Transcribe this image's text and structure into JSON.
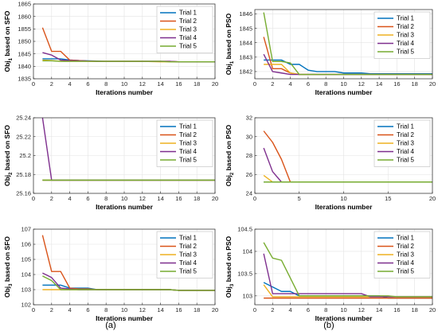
{
  "figure": {
    "left_label": "(a)",
    "right_label": "(b)"
  },
  "colors": [
    "#0072BD",
    "#D95319",
    "#EDB120",
    "#7E2F8E",
    "#77AC30"
  ],
  "chart_data": [
    {
      "type": "line",
      "id": "a1",
      "xlabel": "Iterations number",
      "ylabel_base": "Obj",
      "ylabel_sub": "1",
      "ylabel_rest": " based on SFO",
      "xlim": [
        0,
        20
      ],
      "ylim": [
        1835,
        1865
      ],
      "xticks": [
        0,
        2,
        4,
        6,
        8,
        10,
        12,
        14,
        16,
        18,
        20
      ],
      "yticks": [
        1835,
        1840,
        1845,
        1850,
        1855,
        1860,
        1865
      ],
      "grid": true,
      "legend": "top-right",
      "x": [
        1,
        2,
        3,
        4,
        5,
        6,
        7,
        8,
        9,
        10,
        11,
        12,
        13,
        14,
        15,
        16,
        17,
        18,
        19,
        20
      ],
      "series": [
        {
          "name": "Trial 1",
          "values": [
            1843,
            1843,
            1843,
            1842.5,
            1842.3,
            1842.2,
            1842.1,
            1842,
            1842,
            1842,
            1842,
            1842,
            1842,
            1842,
            1841.9,
            1841.8,
            1841.8,
            1841.8,
            1841.8,
            1841.8
          ]
        },
        {
          "name": "Trial 2",
          "values": [
            1855.5,
            1846,
            1846,
            1842.5,
            1842.3,
            1842.1,
            1842,
            1842,
            1842,
            1842,
            1842,
            1842,
            1842,
            1842,
            1842,
            1841.8,
            1841.8,
            1841.8,
            1841.8,
            1841.8
          ]
        },
        {
          "name": "Trial 3",
          "values": [
            1842.5,
            1842.3,
            1842,
            1842,
            1842,
            1842,
            1842,
            1842,
            1842,
            1842,
            1842,
            1842,
            1841.9,
            1841.8,
            1841.8,
            1841.8,
            1841.8,
            1841.8,
            1841.8,
            1841.8
          ]
        },
        {
          "name": "Trial 4",
          "values": [
            1845.5,
            1844.5,
            1842.5,
            1842.3,
            1842.2,
            1842.1,
            1842,
            1842,
            1842,
            1842,
            1842,
            1842,
            1842,
            1842,
            1842,
            1841.8,
            1841.8,
            1841.8,
            1841.8,
            1841.8
          ]
        },
        {
          "name": "Trial 5",
          "values": [
            1842.2,
            1842.2,
            1842,
            1842,
            1842,
            1842,
            1842,
            1842,
            1842,
            1842,
            1842,
            1842,
            1842,
            1842,
            1841.8,
            1841.8,
            1841.8,
            1841.8,
            1841.8,
            1841.8
          ]
        }
      ]
    },
    {
      "type": "line",
      "id": "b1",
      "xlabel": "Iterations number",
      "ylabel_base": "Obj",
      "ylabel_sub": "1",
      "ylabel_rest": " based on PSO",
      "xlim": [
        0,
        20
      ],
      "ylim": [
        1841.5,
        1846.3
      ],
      "xticks": [
        0,
        2,
        4,
        6,
        8,
        10,
        12,
        14,
        16,
        18,
        20
      ],
      "yticks": [
        1842,
        1843,
        1844,
        1845,
        1846
      ],
      "grid": true,
      "legend": "top-right",
      "x": [
        1,
        2,
        3,
        4,
        5,
        6,
        7,
        8,
        9,
        10,
        11,
        12,
        13,
        14,
        15,
        16,
        17,
        18,
        19,
        20
      ],
      "series": [
        {
          "name": "Trial 1",
          "values": [
            1842.8,
            1842.8,
            1842.8,
            1842.5,
            1842.5,
            1842.1,
            1842,
            1842,
            1842,
            1841.9,
            1841.9,
            1841.9,
            1841.85,
            1841.85,
            1841.85,
            1841.85,
            1841.85,
            1841.85,
            1841.85,
            1841.85
          ]
        },
        {
          "name": "Trial 2",
          "values": [
            1844.4,
            1842.2,
            1842.2,
            1841.9,
            1841.8,
            1841.8,
            1841.8,
            1841.8,
            1841.8,
            1841.8,
            1841.8,
            1841.8,
            1841.8,
            1841.8,
            1841.8,
            1841.8,
            1841.8,
            1841.8,
            1841.8,
            1841.8
          ]
        },
        {
          "name": "Trial 3",
          "values": [
            1842.5,
            1842.5,
            1842.5,
            1841.9,
            1841.8,
            1841.8,
            1841.8,
            1841.8,
            1841.8,
            1841.8,
            1841.8,
            1841.8,
            1841.8,
            1841.8,
            1841.8,
            1841.8,
            1841.8,
            1841.8,
            1841.8,
            1841.8
          ]
        },
        {
          "name": "Trial 4",
          "values": [
            1843.2,
            1842,
            1841.9,
            1841.8,
            1841.8,
            1841.8,
            1841.8,
            1841.8,
            1841.8,
            1841.8,
            1841.8,
            1841.8,
            1841.8,
            1841.8,
            1841.8,
            1841.8,
            1841.8,
            1841.8,
            1841.8,
            1841.8
          ]
        },
        {
          "name": "Trial 5",
          "values": [
            1846.1,
            1842.7,
            1842.7,
            1842.6,
            1841.8,
            1841.8,
            1841.8,
            1841.8,
            1841.8,
            1841.8,
            1841.8,
            1841.8,
            1841.8,
            1841.8,
            1841.8,
            1841.8,
            1841.8,
            1841.8,
            1841.8,
            1841.8
          ]
        }
      ]
    },
    {
      "type": "line",
      "id": "a2",
      "xlabel": "Iterations number",
      "ylabel_base": "Obj",
      "ylabel_sub": "2",
      "ylabel_rest": " based on SFO",
      "xlim": [
        0,
        20
      ],
      "ylim": [
        25.16,
        25.24
      ],
      "xticks": [
        0,
        2,
        4,
        6,
        8,
        10,
        12,
        14,
        16,
        18,
        20
      ],
      "yticks": [
        25.16,
        25.18,
        25.2,
        25.22,
        25.24
      ],
      "grid": true,
      "legend": "top-right",
      "x": [
        1,
        2,
        3,
        4,
        5,
        6,
        7,
        8,
        9,
        10,
        11,
        12,
        13,
        14,
        15,
        16,
        17,
        18,
        19,
        20
      ],
      "series": [
        {
          "name": "Trial 1",
          "values": [
            25.174,
            25.174,
            25.174,
            25.174,
            25.174,
            25.174,
            25.174,
            25.174,
            25.174,
            25.174,
            25.174,
            25.174,
            25.174,
            25.174,
            25.174,
            25.174,
            25.174,
            25.174,
            25.174,
            25.174
          ]
        },
        {
          "name": "Trial 2",
          "values": [
            25.174,
            25.174,
            25.174,
            25.174,
            25.174,
            25.174,
            25.174,
            25.174,
            25.174,
            25.174,
            25.174,
            25.174,
            25.174,
            25.174,
            25.174,
            25.174,
            25.174,
            25.174,
            25.174,
            25.174
          ]
        },
        {
          "name": "Trial 3",
          "values": [
            25.174,
            25.174,
            25.174,
            25.174,
            25.174,
            25.174,
            25.174,
            25.174,
            25.174,
            25.174,
            25.174,
            25.174,
            25.174,
            25.174,
            25.174,
            25.174,
            25.174,
            25.174,
            25.174,
            25.174
          ]
        },
        {
          "name": "Trial 4",
          "values": [
            25.24,
            25.174,
            25.174,
            25.174,
            25.174,
            25.174,
            25.174,
            25.174,
            25.174,
            25.174,
            25.174,
            25.174,
            25.174,
            25.174,
            25.174,
            25.174,
            25.174,
            25.174,
            25.174,
            25.174
          ]
        },
        {
          "name": "Trial 5",
          "values": [
            25.174,
            25.174,
            25.174,
            25.174,
            25.174,
            25.174,
            25.174,
            25.174,
            25.174,
            25.174,
            25.174,
            25.174,
            25.174,
            25.174,
            25.174,
            25.174,
            25.174,
            25.174,
            25.174,
            25.174
          ]
        }
      ]
    },
    {
      "type": "line",
      "id": "b2",
      "xlabel": "Iterations number",
      "ylabel_base": "Obj",
      "ylabel_sub": "2",
      "ylabel_rest": " based on PSO",
      "xlim": [
        0,
        20
      ],
      "ylim": [
        24,
        32
      ],
      "xticks": [
        0,
        5,
        10,
        15,
        20
      ],
      "yticks": [
        24,
        26,
        28,
        30,
        32
      ],
      "grid": true,
      "legend": "top-right",
      "x": [
        1,
        2,
        3,
        4,
        5,
        6,
        7,
        8,
        9,
        10,
        11,
        12,
        13,
        14,
        15,
        16,
        17,
        18,
        19,
        20
      ],
      "series": [
        {
          "name": "Trial 1",
          "values": [
            25.2,
            25.2,
            25.2,
            25.2,
            25.2,
            25.2,
            25.2,
            25.2,
            25.2,
            25.2,
            25.2,
            25.2,
            25.2,
            25.2,
            25.2,
            25.2,
            25.2,
            25.2,
            25.2,
            25.2
          ]
        },
        {
          "name": "Trial 2",
          "values": [
            30.6,
            29.4,
            27.6,
            25.2,
            25.2,
            25.2,
            25.2,
            25.2,
            25.2,
            25.2,
            25.2,
            25.2,
            25.2,
            25.2,
            25.2,
            25.2,
            25.2,
            25.2,
            25.2,
            25.2
          ]
        },
        {
          "name": "Trial 3",
          "values": [
            25.9,
            25.2,
            25.2,
            25.2,
            25.2,
            25.2,
            25.2,
            25.2,
            25.2,
            25.2,
            25.2,
            25.2,
            25.2,
            25.2,
            25.2,
            25.2,
            25.2,
            25.2,
            25.2,
            25.2
          ]
        },
        {
          "name": "Trial 4",
          "values": [
            28.8,
            26.3,
            25.2,
            25.2,
            25.2,
            25.2,
            25.2,
            25.2,
            25.2,
            25.2,
            25.2,
            25.2,
            25.2,
            25.2,
            25.2,
            25.2,
            25.2,
            25.2,
            25.2,
            25.2
          ]
        },
        {
          "name": "Trial 5",
          "values": [
            25.2,
            25.2,
            25.2,
            25.2,
            25.2,
            25.2,
            25.2,
            25.2,
            25.2,
            25.2,
            25.2,
            25.2,
            25.2,
            25.2,
            25.2,
            25.2,
            25.2,
            25.2,
            25.2,
            25.2
          ]
        }
      ]
    },
    {
      "type": "line",
      "id": "a3",
      "xlabel": "Iterations number",
      "ylabel_base": "Obj",
      "ylabel_sub": "3",
      "ylabel_rest": " based on SFO",
      "xlim": [
        0,
        20
      ],
      "ylim": [
        102,
        107
      ],
      "xticks": [
        0,
        2,
        4,
        6,
        8,
        10,
        12,
        14,
        16,
        18,
        20
      ],
      "yticks": [
        102,
        103,
        104,
        105,
        106,
        107
      ],
      "grid": true,
      "legend": "top-right",
      "x": [
        1,
        2,
        3,
        4,
        5,
        6,
        7,
        8,
        9,
        10,
        11,
        12,
        13,
        14,
        15,
        16,
        17,
        18,
        19,
        20
      ],
      "series": [
        {
          "name": "Trial 1",
          "values": [
            103.3,
            103.3,
            103.3,
            103.1,
            103.1,
            103.1,
            103,
            103,
            103,
            103,
            103,
            103,
            103,
            103,
            103,
            102.95,
            102.95,
            102.95,
            102.95,
            102.95
          ]
        },
        {
          "name": "Trial 2",
          "values": [
            106.6,
            104.2,
            104.2,
            103.1,
            103.05,
            103.05,
            103,
            103,
            103,
            103,
            103,
            103,
            103,
            103,
            103,
            102.95,
            102.95,
            102.95,
            102.95,
            102.95
          ]
        },
        {
          "name": "Trial 3",
          "values": [
            103,
            103,
            103,
            103,
            103,
            103,
            103,
            103,
            103,
            103,
            103,
            103,
            103,
            103,
            103,
            102.95,
            102.95,
            102.95,
            102.95,
            102.95
          ]
        },
        {
          "name": "Trial 4",
          "values": [
            104.1,
            103.8,
            103.1,
            103.05,
            103,
            103,
            103,
            103,
            103,
            103,
            103,
            103,
            103,
            103,
            103,
            102.95,
            102.95,
            102.95,
            102.95,
            102.95
          ]
        },
        {
          "name": "Trial 5",
          "values": [
            103.9,
            103.6,
            103,
            103,
            103,
            103,
            103,
            103,
            103,
            103,
            103,
            103,
            103,
            103,
            103,
            102.95,
            102.95,
            102.95,
            102.95,
            102.95
          ]
        }
      ]
    },
    {
      "type": "line",
      "id": "b3",
      "xlabel": "Iterations number",
      "ylabel_base": "Obj",
      "ylabel_sub": "3",
      "ylabel_rest": " based on PSO",
      "xlim": [
        0,
        20
      ],
      "ylim": [
        102.8,
        104.5
      ],
      "xticks": [
        0,
        2,
        4,
        6,
        8,
        10,
        12,
        14,
        16,
        18,
        20
      ],
      "yticks": [
        103,
        103.5,
        104,
        104.5
      ],
      "grid": true,
      "legend": "top-right",
      "x": [
        1,
        2,
        3,
        4,
        5,
        6,
        7,
        8,
        9,
        10,
        11,
        12,
        13,
        14,
        15,
        16,
        17,
        18,
        19,
        20
      ],
      "series": [
        {
          "name": "Trial 1",
          "values": [
            103.3,
            103.2,
            103.1,
            103.1,
            103,
            103,
            103,
            103,
            103,
            103,
            103,
            103,
            103,
            103,
            102.95,
            102.95,
            102.95,
            102.95,
            102.95,
            102.95
          ]
        },
        {
          "name": "Trial 2",
          "values": [
            102.95,
            102.95,
            102.95,
            102.95,
            102.95,
            102.95,
            102.95,
            102.95,
            102.95,
            102.95,
            102.95,
            102.95,
            102.95,
            102.95,
            102.95,
            102.95,
            102.95,
            102.95,
            102.95,
            102.95
          ]
        },
        {
          "name": "Trial 3",
          "values": [
            103.25,
            102.98,
            102.98,
            102.98,
            102.98,
            102.98,
            102.98,
            102.98,
            102.98,
            102.98,
            102.98,
            102.98,
            102.98,
            102.98,
            102.98,
            102.98,
            102.98,
            102.98,
            102.98,
            102.98
          ]
        },
        {
          "name": "Trial 4",
          "values": [
            103.95,
            103.05,
            103.05,
            103.05,
            103.05,
            103.05,
            103.05,
            103.05,
            103.05,
            103.05,
            103.05,
            103.05,
            102.98,
            102.98,
            102.98,
            102.98,
            102.98,
            102.98,
            102.98,
            102.98
          ]
        },
        {
          "name": "Trial 5",
          "values": [
            104.2,
            103.85,
            103.8,
            103.4,
            103,
            103,
            103,
            103,
            103,
            103,
            103,
            103,
            103,
            103,
            103,
            102.98,
            102.98,
            102.98,
            102.98,
            102.98
          ]
        }
      ]
    }
  ]
}
